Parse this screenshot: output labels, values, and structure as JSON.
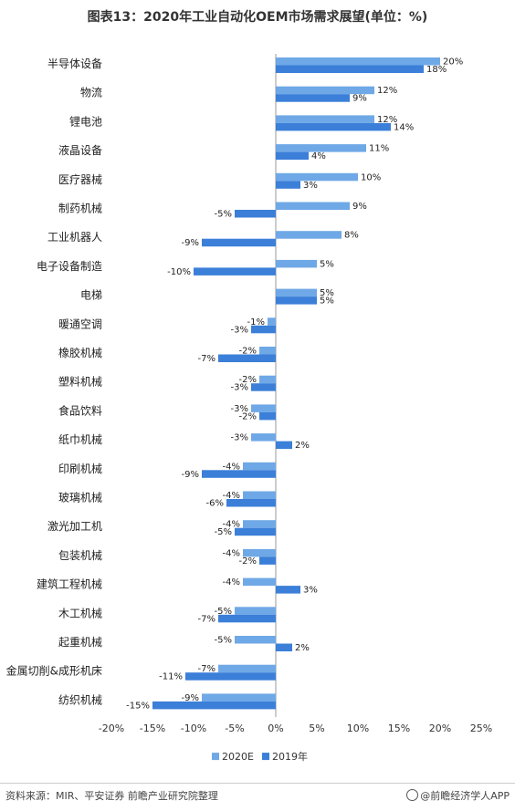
{
  "title": "图表13：2020年工业自动化OEM市场需求展望(单位：%)",
  "source": "资料来源：MIR、平安证券   前瞻产业研究院整理",
  "brand": "@前瞻经济学人APP",
  "colors": {
    "series_2020E": "#6fa8e6",
    "series_2019": "#3b7fd9"
  },
  "chart_data": {
    "type": "bar",
    "orientation": "horizontal",
    "categories": [
      "半导体设备",
      "物流",
      "锂电池",
      "液晶设备",
      "医疗器械",
      "制药机械",
      "工业机器人",
      "电子设备制造",
      "电梯",
      "暖通空调",
      "橡胶机械",
      "塑料机械",
      "食品饮料",
      "纸巾机械",
      "印刷机械",
      "玻璃机械",
      "激光加工机",
      "包装机械",
      "建筑工程机械",
      "木工机械",
      "起重机械",
      "金属切削&成形机床",
      "纺织机械"
    ],
    "series": [
      {
        "name": "2020E",
        "values": [
          20,
          12,
          12,
          11,
          10,
          9,
          8,
          5,
          5,
          -1,
          -2,
          -2,
          -3,
          -3,
          -4,
          -4,
          -4,
          -4,
          -4,
          -5,
          -5,
          -7,
          -9
        ]
      },
      {
        "name": "2019年",
        "values": [
          18,
          9,
          14,
          4,
          3,
          -5,
          -9,
          -10,
          5,
          -3,
          -7,
          -3,
          -2,
          2,
          -9,
          -6,
          -5,
          -2,
          3,
          -7,
          2,
          -11,
          -15
        ]
      }
    ],
    "xlim": [
      -20,
      25
    ],
    "xticks": [
      "-20%",
      "-15%",
      "-10%",
      "-5%",
      "0%",
      "5%",
      "10%",
      "15%",
      "20%",
      "25%"
    ],
    "value_suffix": "%",
    "legend_position": "bottom"
  }
}
